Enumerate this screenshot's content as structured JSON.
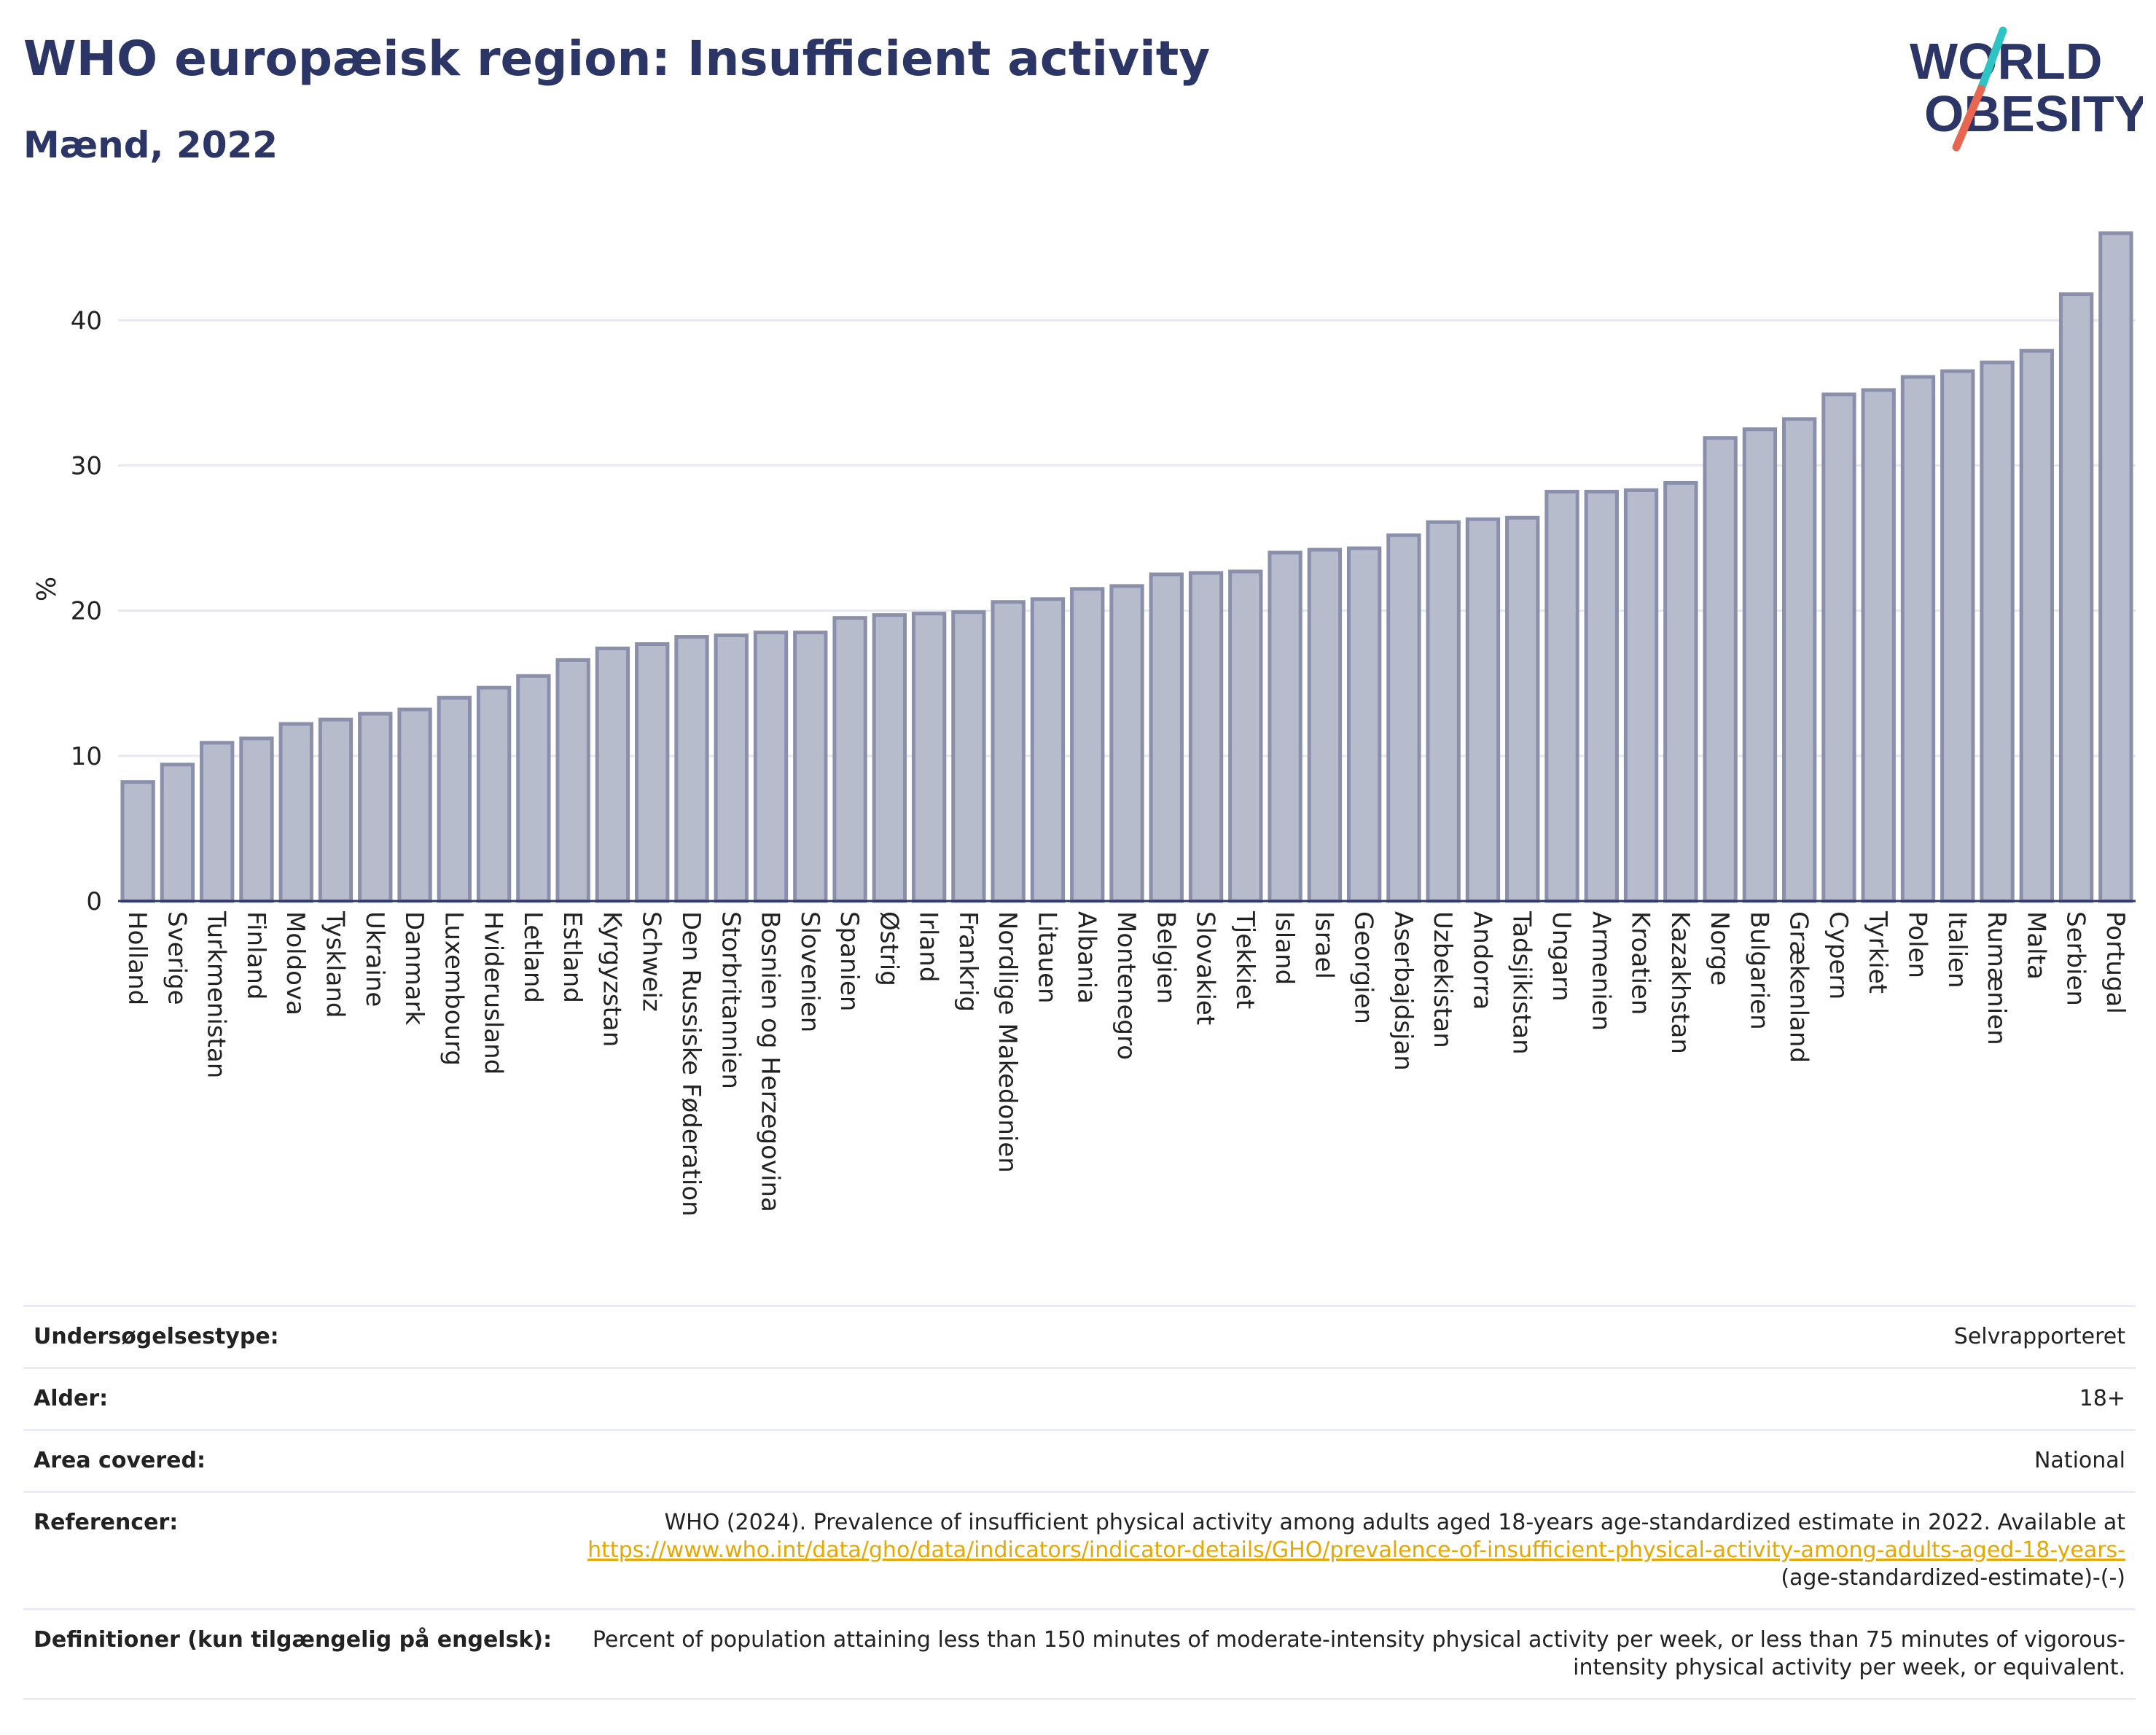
{
  "header": {
    "title": "WHO europæisk region: Insufficient activity",
    "subtitle": "Mænd, 2022"
  },
  "logo": {
    "line1": "WORLD",
    "line2": "OBESITY",
    "slash_colors": [
      "#2ec4c4",
      "#e8664f"
    ],
    "text_color": "#2b3566"
  },
  "colors": {
    "bar_fill": "#b7bccc",
    "bar_stroke": "#8a90ab",
    "title": "#2b3566",
    "link": "#e6a800"
  },
  "chart_data": {
    "type": "bar",
    "ylabel": "%",
    "xlabel": "",
    "ylim": [
      0,
      47
    ],
    "yticks": [
      0,
      10,
      20,
      30,
      40
    ],
    "grid": true,
    "categories": [
      "Holland",
      "Sverige",
      "Turkmenistan",
      "Finland",
      "Moldova",
      "Tyskland",
      "Ukraine",
      "Danmark",
      "Luxembourg",
      "Hviderusland",
      "Letland",
      "Estland",
      "Kyrgyzstan",
      "Schweiz",
      "Den Russiske Føderation",
      "Storbritannien",
      "Bosnien og Herzegovina",
      "Slovenien",
      "Spanien",
      "Østrig",
      "Irland",
      "Frankrig",
      "Nordlige Makedonien",
      "Litauen",
      "Albania",
      "Montenegro",
      "Belgien",
      "Slovakiet",
      "Tjekkiet",
      "Island",
      "Israel",
      "Georgien",
      "Aserbajdsjan",
      "Uzbekistan",
      "Andorra",
      "Tadsjikistan",
      "Ungarn",
      "Armenien",
      "Kroatien",
      "Kazakhstan",
      "Norge",
      "Bulgarien",
      "Grækenland",
      "Cypern",
      "Tyrkiet",
      "Polen",
      "Italien",
      "Rumænien",
      "Malta",
      "Serbien",
      "Portugal"
    ],
    "values": [
      8.2,
      9.4,
      10.9,
      11.2,
      12.2,
      12.5,
      12.9,
      13.2,
      14.0,
      14.7,
      15.5,
      16.6,
      17.4,
      17.7,
      18.2,
      18.3,
      18.5,
      18.5,
      19.5,
      19.7,
      19.8,
      19.9,
      20.6,
      20.8,
      21.5,
      21.7,
      22.5,
      22.6,
      22.7,
      24.0,
      24.2,
      24.3,
      25.2,
      26.1,
      26.3,
      26.4,
      28.2,
      28.2,
      28.3,
      28.8,
      31.9,
      32.5,
      33.2,
      34.9,
      35.2,
      36.1,
      36.5,
      37.1,
      37.9,
      41.8,
      46.0
    ]
  },
  "info_table": {
    "rows": [
      {
        "label": "Undersøgelsestype:",
        "value": "Selvrapporteret"
      },
      {
        "label": "Alder:",
        "value": "18+"
      },
      {
        "label": "Area covered:",
        "value": "National"
      }
    ],
    "references": {
      "label": "Referencer:",
      "text": "WHO (2024). Prevalence of insufficient physical activity among adults aged 18-years age-standardized estimate in 2022. Available at",
      "link": "https://www.who.int/data/gho/data/indicators/indicator-details/GHO/prevalence-of-insufficient-physical-activity-among-adults-aged-18-years-",
      "suffix": "(age-standardized-estimate)-(-)"
    },
    "definitions": {
      "label": "Definitioner (kun tilgængelig på engelsk):",
      "value": "Percent of population attaining less than 150 minutes of moderate-intensity physical activity per week, or less than 75 minutes of vigorous-intensity physical activity per week, or equivalent."
    }
  }
}
